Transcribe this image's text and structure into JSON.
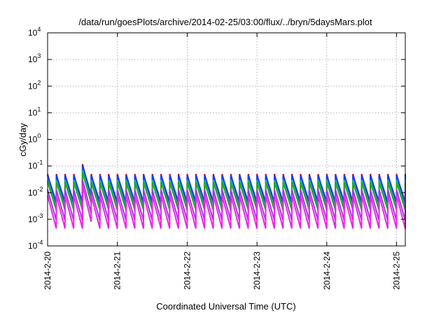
{
  "chart_data": {
    "type": "line",
    "title": "/data/run/goesPlots/archive/2014-02-25/03:00/flux/../bryn/5daysMars.plot",
    "xlabel": "Coordinated Universal Time (UTC)",
    "ylabel": "cGy/day",
    "y_scale": "log",
    "ylim": [
      0.0001,
      10000
    ],
    "y_ticks": [
      {
        "value": 0.0001,
        "base": "10",
        "exp": "-4"
      },
      {
        "value": 0.001,
        "base": "10",
        "exp": "-3"
      },
      {
        "value": 0.01,
        "base": "10",
        "exp": "-2"
      },
      {
        "value": 0.1,
        "base": "10",
        "exp": "-1"
      },
      {
        "value": 1,
        "base": "10",
        "exp": "0"
      },
      {
        "value": 10,
        "base": "10",
        "exp": "1"
      },
      {
        "value": 100,
        "base": "10",
        "exp": "2"
      },
      {
        "value": 1000,
        "base": "10",
        "exp": "3"
      },
      {
        "value": 10000,
        "base": "10",
        "exp": "4"
      }
    ],
    "xlim": [
      "2014-02-20T00:00",
      "2014-02-25T03:00"
    ],
    "x_ticks": [
      {
        "value": "2014-02-20T00:00",
        "label": "2014-2-20"
      },
      {
        "value": "2014-02-21T00:00",
        "label": "2014-2-21"
      },
      {
        "value": "2014-02-22T00:00",
        "label": "2014-2-22"
      },
      {
        "value": "2014-02-23T00:00",
        "label": "2014-2-23"
      },
      {
        "value": "2014-02-24T00:00",
        "label": "2014-2-24"
      },
      {
        "value": "2014-02-25T00:00",
        "label": "2014-2-25"
      }
    ],
    "grid": true,
    "legend": "none",
    "cycle_hours": 3.0,
    "series": [
      {
        "color": "#cc0000",
        "peak": 0.05,
        "trough": 0.003
      },
      {
        "color": "#1a3cff",
        "peak": 0.045,
        "trough": 0.0045
      },
      {
        "color": "#00b4b4",
        "peak": 0.03,
        "trough": 0.0028
      },
      {
        "color": "#22aa22",
        "peak": 0.025,
        "trough": 0.0022
      },
      {
        "color": "#9a3fd0",
        "peak": 0.013,
        "trough": 0.0009
      },
      {
        "color": "#ee22ee",
        "peak": 0.008,
        "trough": 0.00045
      }
    ],
    "event": {
      "start": "2014-02-20T10:30",
      "end": "2014-02-20T14:00",
      "peak": 0.15
    }
  }
}
